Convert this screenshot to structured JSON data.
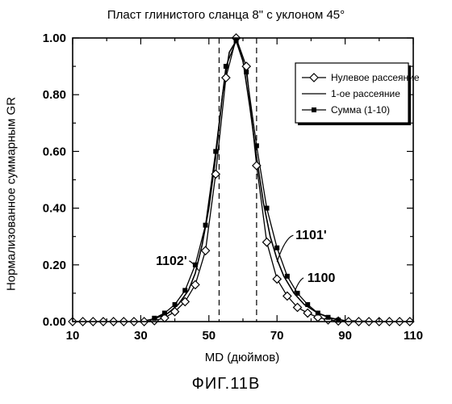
{
  "chart_data": {
    "type": "line",
    "title": "Пласт глинистого сланца 8\" с уклоном 45°",
    "xlabel": "MD (дюймов)",
    "ylabel": "Нормализованное суммарным GR",
    "xlim": [
      10,
      110
    ],
    "ylim": [
      0,
      1.0
    ],
    "xticks": [
      "10",
      "30",
      "50",
      "70",
      "90",
      "110"
    ],
    "yticks": [
      "0.00",
      "0.20",
      "0.40",
      "0.60",
      "0.80",
      "1.00"
    ],
    "x_minor_step": 10,
    "y_minor_step": 0.1,
    "vlines": [
      53,
      64
    ],
    "legend_position": "top-right",
    "series": [
      {
        "name": "Нулевое рассеяние",
        "marker": "diamond",
        "x": [
          10,
          13,
          16,
          19,
          22,
          25,
          28,
          31,
          34,
          37,
          40,
          43,
          46,
          49,
          52,
          55,
          58,
          61,
          64,
          67,
          70,
          73,
          76,
          79,
          82,
          85,
          88,
          91,
          94,
          97,
          100,
          103,
          106,
          109
        ],
        "y": [
          0,
          0,
          0,
          0,
          0,
          0,
          0,
          0,
          0.003,
          0.013,
          0.035,
          0.07,
          0.13,
          0.25,
          0.52,
          0.86,
          1.0,
          0.9,
          0.55,
          0.28,
          0.15,
          0.09,
          0.05,
          0.03,
          0.015,
          0.006,
          0.002,
          0,
          0,
          0,
          0,
          0,
          0,
          0
        ]
      },
      {
        "name": "1-ое рассеяние",
        "marker": "none",
        "x": [
          10,
          20,
          30,
          34,
          38,
          41,
          44,
          46,
          48,
          50,
          52,
          54,
          56,
          58,
          60,
          62,
          64,
          66,
          68,
          70,
          72,
          75,
          78,
          82,
          86,
          90,
          100,
          110
        ],
        "y": [
          0,
          0,
          0,
          0.01,
          0.03,
          0.06,
          0.11,
          0.17,
          0.27,
          0.4,
          0.58,
          0.8,
          0.95,
          0.99,
          0.92,
          0.76,
          0.58,
          0.42,
          0.3,
          0.22,
          0.16,
          0.1,
          0.06,
          0.03,
          0.012,
          0.003,
          0,
          0
        ]
      },
      {
        "name": "Сумма (1-10)",
        "marker": "square",
        "x": [
          34,
          37,
          40,
          43,
          46,
          49,
          52,
          55,
          58,
          61,
          64,
          67,
          70,
          73,
          76,
          79,
          82,
          85,
          88
        ],
        "y": [
          0.012,
          0.03,
          0.06,
          0.11,
          0.2,
          0.34,
          0.6,
          0.9,
          0.99,
          0.88,
          0.62,
          0.4,
          0.26,
          0.16,
          0.1,
          0.06,
          0.03,
          0.015,
          0.005
        ]
      }
    ],
    "annotations": [
      {
        "text": "1102'",
        "x": 39,
        "y": 0.2,
        "arrow_to": [
          47,
          0.18
        ]
      },
      {
        "text": "1101'",
        "x": 80,
        "y": 0.29,
        "arrow_to": [
          70,
          0.21
        ]
      },
      {
        "text": "1100",
        "x": 83,
        "y": 0.14,
        "arrow_to": [
          75,
          0.1
        ]
      }
    ]
  },
  "figure_label": "ФИГ.11В"
}
